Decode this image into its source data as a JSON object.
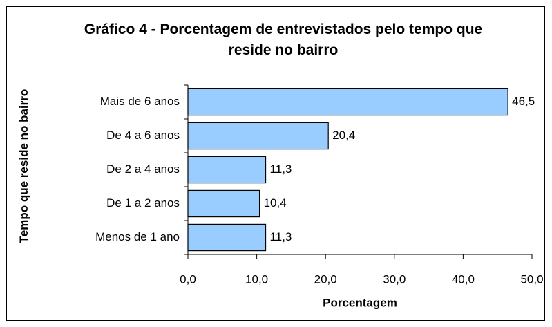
{
  "chart_data": {
    "type": "barh",
    "title": "Gráfico 4 - Porcentagem de entrevistados pelo tempo que reside no bairro",
    "xlabel": "Porcentagem",
    "ylabel": "Tempo que reside no bairro",
    "categories": [
      "Mais de 6 anos",
      "De 4 a 6 anos",
      "De 2 a 4 anos",
      "De 1 a 2 anos",
      "Menos de 1 ano"
    ],
    "values": [
      46.5,
      20.4,
      11.3,
      10.4,
      11.3
    ],
    "value_labels": [
      "46,5",
      "20,4",
      "11,3",
      "10,4",
      "11,3"
    ],
    "color": "#99ccff",
    "xlim": [
      0,
      50
    ],
    "xticks": [
      {
        "value": 0,
        "label": "0,0"
      },
      {
        "value": 10,
        "label": "10,0"
      },
      {
        "value": 20,
        "label": "20,0"
      },
      {
        "value": 30,
        "label": "30,0"
      },
      {
        "value": 40,
        "label": "40,0"
      },
      {
        "value": 50,
        "label": "50,0"
      }
    ],
    "grid": false
  }
}
